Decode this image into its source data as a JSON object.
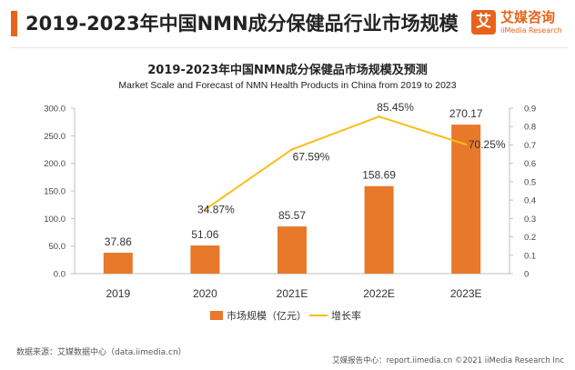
{
  "header": {
    "title": "2019-2023年中国NMN成分保健品行业市场规模",
    "logo_mark": "艾",
    "logo_cn": "艾媒咨询",
    "logo_en": "iiMedia Research"
  },
  "chart_data": {
    "type": "bar",
    "title": "2019-2023年中国NMN成分保健品市场规模及预测",
    "subtitle": "Market Scale and Forecast of NMN Health Products in China from 2019 to 2023",
    "categories": [
      "2019",
      "2020",
      "2021E",
      "2022E",
      "2023E"
    ],
    "series": [
      {
        "name": "市场规模（亿元）",
        "type": "bar",
        "axis": "left",
        "values": [
          37.86,
          51.06,
          85.57,
          158.69,
          270.17
        ],
        "labels": [
          "37.86",
          "51.06",
          "85.57",
          "158.69",
          "270.17"
        ]
      },
      {
        "name": "增长率",
        "type": "line",
        "axis": "right",
        "values": [
          null,
          0.3487,
          0.6759,
          0.8545,
          0.7025
        ],
        "labels": [
          "",
          "34.87%",
          "67.59%",
          "85.45%",
          "70.25%"
        ]
      }
    ],
    "left_axis": {
      "min": 0,
      "max": 300,
      "ticks": [
        "0.0",
        "50.0",
        "100.0",
        "150.0",
        "200.0",
        "250.0",
        "300.0"
      ]
    },
    "right_axis": {
      "min": 0,
      "max": 0.9,
      "ticks": [
        "0",
        "0.1",
        "0.2",
        "0.3",
        "0.4",
        "0.5",
        "0.6",
        "0.7",
        "0.8",
        "0.9"
      ]
    },
    "colors": {
      "bar": "#e8782a",
      "line": "#fbbd1a"
    },
    "legend": [
      "市场规模（亿元）",
      "增长率"
    ],
    "legend_position": "bottom"
  },
  "footer": {
    "source": "数据来源：艾媒数据中心（data.iimedia.cn）",
    "report": "艾媒报告中心：report.iimedia.cn  ©2021  iiMedia Research  Inc"
  }
}
